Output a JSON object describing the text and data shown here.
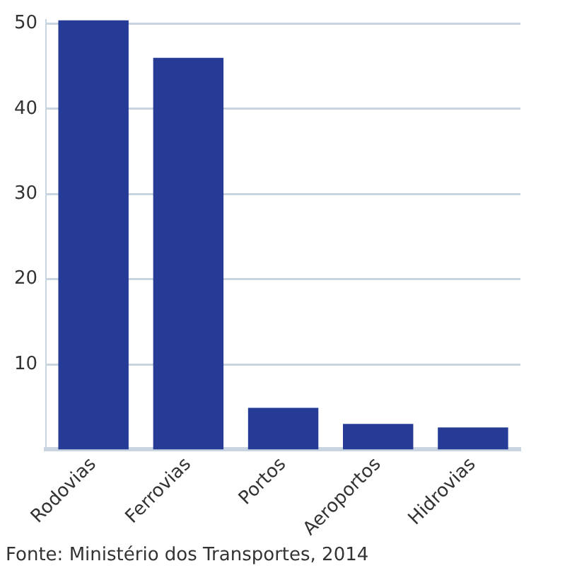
{
  "chart_data": {
    "type": "bar",
    "categories": [
      "Rodovias",
      "Ferrovias",
      "Portos",
      "Aeroportos",
      "Hidrovias"
    ],
    "values": [
      50.4,
      46.0,
      4.9,
      3.0,
      2.6
    ],
    "color": "#263b96",
    "ylim": [
      0,
      50.5
    ],
    "yticks": [
      10,
      20,
      30,
      40,
      50
    ],
    "grid": "y",
    "legend": false,
    "annotations": [
      "Fonte: Ministério dos Transportes, 2014"
    ]
  }
}
